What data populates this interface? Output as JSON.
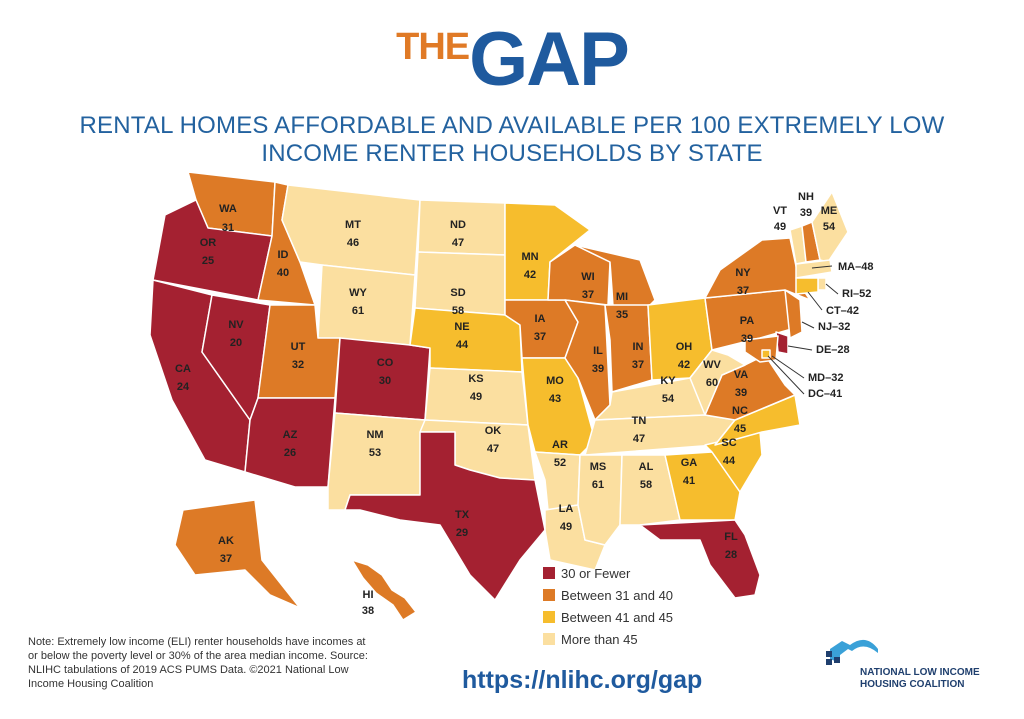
{
  "header": {
    "logo_the": "THE",
    "logo_gap": "GAP",
    "subtitle_line1": "RENTAL HOMES AFFORDABLE AND AVAILABLE PER 100 EXTREMELY LOW",
    "subtitle_line2": "INCOME RENTER HOUSEHOLDS BY STATE"
  },
  "colors": {
    "30 or Fewer": "#a42131",
    "Between 31 and 40": "#dd7a26",
    "Between 41 and 45": "#f6bd2d",
    "More than 45": "#fbdfa0"
  },
  "legend": [
    {
      "label": "30 or Fewer",
      "color": "#a42131"
    },
    {
      "label": "Between 31 and 40",
      "color": "#dd7a26"
    },
    {
      "label": "Between 41 and 45",
      "color": "#f6bd2d"
    },
    {
      "label": "More than 45",
      "color": "#fbdfa0"
    }
  ],
  "states": [
    {
      "abbr": "WA",
      "value": 31
    },
    {
      "abbr": "OR",
      "value": 25
    },
    {
      "abbr": "CA",
      "value": 24
    },
    {
      "abbr": "NV",
      "value": 20
    },
    {
      "abbr": "ID",
      "value": 40
    },
    {
      "abbr": "MT",
      "value": 46
    },
    {
      "abbr": "WY",
      "value": 61
    },
    {
      "abbr": "UT",
      "value": 32
    },
    {
      "abbr": "AZ",
      "value": 26
    },
    {
      "abbr": "CO",
      "value": 30
    },
    {
      "abbr": "NM",
      "value": 53
    },
    {
      "abbr": "ND",
      "value": 47
    },
    {
      "abbr": "SD",
      "value": 58
    },
    {
      "abbr": "NE",
      "value": 44
    },
    {
      "abbr": "KS",
      "value": 49
    },
    {
      "abbr": "OK",
      "value": 47
    },
    {
      "abbr": "TX",
      "value": 29
    },
    {
      "abbr": "MN",
      "value": 42
    },
    {
      "abbr": "IA",
      "value": 37
    },
    {
      "abbr": "MO",
      "value": 43
    },
    {
      "abbr": "AR",
      "value": 52
    },
    {
      "abbr": "LA",
      "value": 49
    },
    {
      "abbr": "WI",
      "value": 37
    },
    {
      "abbr": "IL",
      "value": 39
    },
    {
      "abbr": "MI",
      "value": 35
    },
    {
      "abbr": "IN",
      "value": 37
    },
    {
      "abbr": "OH",
      "value": 42
    },
    {
      "abbr": "KY",
      "value": 54
    },
    {
      "abbr": "TN",
      "value": 47
    },
    {
      "abbr": "MS",
      "value": 61
    },
    {
      "abbr": "AL",
      "value": 58
    },
    {
      "abbr": "GA",
      "value": 41
    },
    {
      "abbr": "FL",
      "value": 28
    },
    {
      "abbr": "SC",
      "value": 44
    },
    {
      "abbr": "NC",
      "value": 45
    },
    {
      "abbr": "VA",
      "value": 39
    },
    {
      "abbr": "WV",
      "value": 60
    },
    {
      "abbr": "PA",
      "value": 39
    },
    {
      "abbr": "NY",
      "value": 37
    },
    {
      "abbr": "VT",
      "value": 49
    },
    {
      "abbr": "NH",
      "value": 39
    },
    {
      "abbr": "ME",
      "value": 54
    },
    {
      "abbr": "MA",
      "value": 48
    },
    {
      "abbr": "RI",
      "value": 52
    },
    {
      "abbr": "CT",
      "value": 42
    },
    {
      "abbr": "NJ",
      "value": 32
    },
    {
      "abbr": "DE",
      "value": 28
    },
    {
      "abbr": "MD",
      "value": 32
    },
    {
      "abbr": "DC",
      "value": 41
    },
    {
      "abbr": "AK",
      "value": 37
    },
    {
      "abbr": "HI",
      "value": 38
    }
  ],
  "note": "Note: Extremely low income (ELI) renter households have incomes at or below the poverty level or 30% of the area median income. Source: NLIHC tabulations of 2019 ACS PUMS Data. ©2021 National Low Income Housing Coalition",
  "url": "https://nlihc.org/gap",
  "org": {
    "line1": "NATIONAL LOW INCOME",
    "line2": "HOUSING COALITION"
  }
}
